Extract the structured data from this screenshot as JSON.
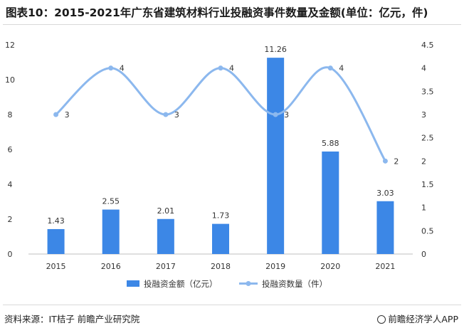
{
  "header": {
    "title": "图表10：2015-2021年广东省建筑材料行业投融资事件数量及金额(单位：亿元，件)"
  },
  "footer": {
    "source": "资料来源：IT桔子 前瞻产业研究院",
    "brand": "前瞻经济学人APP"
  },
  "colors": {
    "bar": "#3c87e6",
    "line": "#8cb8ee",
    "axis": "#bfbfbf",
    "text": "#333333"
  },
  "chart_data": {
    "type": "bar",
    "categories": [
      "2015",
      "2016",
      "2017",
      "2018",
      "2019",
      "2020",
      "2021"
    ],
    "series": [
      {
        "name": "投融资金额（亿元）",
        "type": "bar",
        "axis": "left",
        "values": [
          1.43,
          2.55,
          2.01,
          1.73,
          11.26,
          5.88,
          3.03
        ],
        "labels": [
          "1.43",
          "2.55",
          "2.01",
          "1.73",
          "11.26",
          "5.88",
          "3.03"
        ]
      },
      {
        "name": "投融资数量（件）",
        "type": "line",
        "axis": "right",
        "smooth": true,
        "values": [
          3,
          4,
          3,
          4,
          3,
          4,
          2
        ],
        "labels": [
          "3",
          "4",
          "3",
          "4",
          "3",
          "4",
          "2"
        ]
      }
    ],
    "y_left": {
      "ylim": [
        0,
        12
      ],
      "ticks": [
        "0",
        "2",
        "4",
        "6",
        "8",
        "10",
        "12"
      ]
    },
    "y_right": {
      "ylim": [
        0,
        4.5
      ],
      "ticks": [
        "0",
        "0.5",
        "1",
        "1.5",
        "2",
        "2.5",
        "3",
        "3.5",
        "4",
        "4.5"
      ]
    },
    "grid": false,
    "legend": "bottom"
  }
}
